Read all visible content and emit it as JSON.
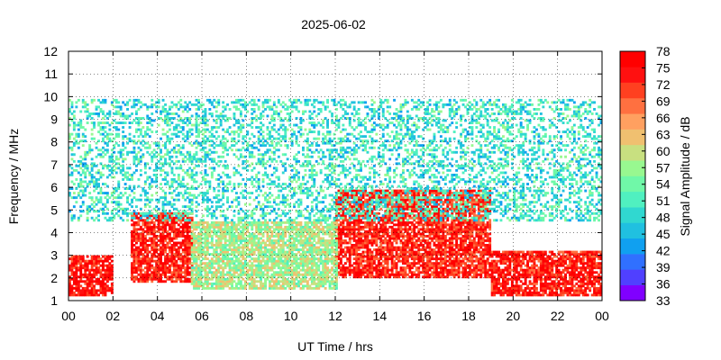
{
  "chart_data": {
    "type": "heatmap",
    "title": "2025-06-02",
    "xlabel": "UT Time / hrs",
    "ylabel": "Frequency / MHz",
    "colorbar_label": "Signal Amplitude / dB",
    "xlim": [
      0,
      24
    ],
    "ylim": [
      1,
      12
    ],
    "x_ticks": [
      "00",
      "02",
      "04",
      "06",
      "08",
      "10",
      "12",
      "14",
      "16",
      "18",
      "20",
      "22",
      "00"
    ],
    "y_ticks": [
      "1",
      "2",
      "3",
      "4",
      "5",
      "6",
      "7",
      "8",
      "9",
      "10",
      "11",
      "12"
    ],
    "colorbar_ticks": [
      "33",
      "36",
      "39",
      "42",
      "45",
      "48",
      "51",
      "54",
      "57",
      "60",
      "63",
      "66",
      "69",
      "72",
      "75",
      "78"
    ],
    "colorbar_range": [
      33,
      78
    ],
    "colorbar_colors": [
      "#8000ff",
      "#5040ff",
      "#3070ff",
      "#10a0f0",
      "#20c0e0",
      "#30d8d0",
      "#50f0c0",
      "#70f8a8",
      "#98f890",
      "#c8e080",
      "#f0c070",
      "#ffa060",
      "#ff7040",
      "#ff4020",
      "#ff1010",
      "#ff0000"
    ],
    "grid": true,
    "features": [
      {
        "label": "high-amplitude band (dB)",
        "x": [
          0,
          2
        ],
        "y": [
          1.2,
          3.0
        ],
        "value": 75
      },
      {
        "label": "high-amplitude band (dB)",
        "x": [
          2.8,
          5.5
        ],
        "y": [
          1.8,
          4.8
        ],
        "value": 74
      },
      {
        "label": "high-amplitude band (dB)",
        "x": [
          12,
          19
        ],
        "y": [
          2.0,
          5.8
        ],
        "value": 73
      },
      {
        "label": "high-amplitude band (dB)",
        "x": [
          19,
          24
        ],
        "y": [
          1.2,
          3.2
        ],
        "value": 74
      },
      {
        "label": "mid-amplitude band (dB)",
        "x": [
          5.5,
          12
        ],
        "y": [
          1.5,
          4.5
        ],
        "value": 58
      },
      {
        "label": "low-amplitude scatter (dB)",
        "x": [
          0,
          24
        ],
        "y": [
          4.5,
          9.8
        ],
        "value": 50
      }
    ]
  }
}
